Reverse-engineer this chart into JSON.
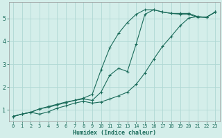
{
  "xlabel": "Humidex (Indice chaleur)",
  "background_color": "#d4eeea",
  "grid_color": "#b0d8d4",
  "line_color": "#1a6b5a",
  "xlim": [
    -0.5,
    23.5
  ],
  "ylim": [
    0.5,
    5.7
  ],
  "xticks": [
    0,
    1,
    2,
    3,
    4,
    5,
    6,
    7,
    8,
    9,
    10,
    11,
    12,
    13,
    14,
    15,
    16,
    17,
    18,
    19,
    20,
    21,
    22,
    23
  ],
  "yticks": [
    1,
    2,
    3,
    4,
    5
  ],
  "line1_x": [
    0,
    1,
    2,
    3,
    4,
    5,
    6,
    7,
    8,
    9,
    10,
    11,
    12,
    13,
    14,
    15,
    16,
    17,
    18,
    19,
    20,
    21,
    22,
    23
  ],
  "line1_y": [
    0.72,
    0.82,
    0.9,
    1.05,
    1.15,
    1.25,
    1.35,
    1.42,
    1.52,
    1.68,
    2.75,
    3.72,
    4.35,
    4.82,
    5.18,
    5.38,
    5.38,
    5.28,
    5.22,
    5.22,
    5.22,
    5.08,
    5.05,
    5.28
  ],
  "line2_x": [
    0,
    1,
    2,
    3,
    4,
    5,
    6,
    7,
    8,
    9,
    10,
    11,
    12,
    13,
    14,
    15,
    16,
    17,
    18,
    19,
    20,
    21,
    22,
    23
  ],
  "line2_y": [
    0.72,
    0.82,
    0.9,
    1.05,
    1.12,
    1.22,
    1.32,
    1.42,
    1.48,
    1.42,
    1.78,
    2.52,
    2.82,
    2.68,
    3.88,
    5.18,
    5.38,
    5.28,
    5.22,
    5.18,
    5.18,
    5.05,
    5.05,
    5.28
  ],
  "line3_x": [
    0,
    1,
    2,
    3,
    4,
    5,
    6,
    7,
    8,
    9,
    10,
    11,
    12,
    13,
    14,
    15,
    16,
    17,
    18,
    19,
    20,
    21,
    22,
    23
  ],
  "line3_y": [
    0.72,
    0.82,
    0.9,
    0.82,
    0.92,
    1.08,
    1.18,
    1.3,
    1.38,
    1.3,
    1.35,
    1.48,
    1.62,
    1.78,
    2.12,
    2.62,
    3.22,
    3.78,
    4.22,
    4.68,
    5.02,
    5.08,
    5.05,
    5.28
  ]
}
